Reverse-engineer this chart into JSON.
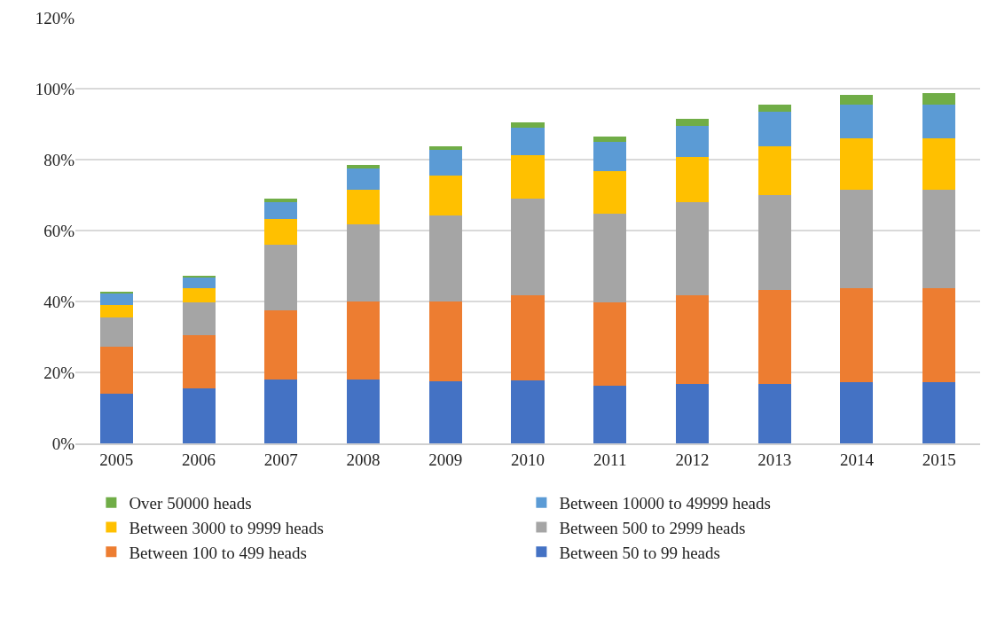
{
  "chart_data": {
    "type": "bar",
    "stacked": true,
    "categories": [
      "2005",
      "2006",
      "2007",
      "2008",
      "2009",
      "2010",
      "2011",
      "2012",
      "2013",
      "2014",
      "2015"
    ],
    "series": [
      {
        "name": "Between 50 to 99 heads",
        "color": "#4472c4",
        "values": [
          13.9,
          15.4,
          18.0,
          18.0,
          17.6,
          17.8,
          16.2,
          16.7,
          16.7,
          17.2,
          17.2
        ]
      },
      {
        "name": "Between 100 to 499 heads",
        "color": "#ed7d31",
        "values": [
          13.4,
          15.0,
          19.6,
          22.1,
          22.5,
          24.0,
          23.5,
          25.1,
          26.6,
          26.6,
          26.6
        ]
      },
      {
        "name": "Between 500 to 2999 heads",
        "color": "#a5a5a5",
        "values": [
          8.2,
          9.3,
          18.5,
          21.6,
          24.2,
          27.2,
          25.1,
          26.1,
          26.7,
          27.7,
          27.7
        ]
      },
      {
        "name": "Between 3000 to 9999 heads",
        "color": "#ffc000",
        "values": [
          3.6,
          4.0,
          7.1,
          9.8,
          11.2,
          12.3,
          11.9,
          12.9,
          13.8,
          14.4,
          14.4
        ]
      },
      {
        "name": "Between 10000 to 49999 heads",
        "color": "#5b9bd5",
        "values": [
          3.2,
          3.2,
          4.7,
          6.1,
          7.3,
          7.7,
          8.2,
          8.7,
          9.8,
          9.7,
          9.7
        ]
      },
      {
        "name": "Over 50000 heads",
        "color": "#70ad47",
        "values": [
          0.4,
          0.4,
          1.0,
          1.0,
          1.0,
          1.5,
          1.5,
          2.0,
          2.0,
          2.6,
          3.1
        ]
      }
    ],
    "ylim": [
      0,
      120
    ],
    "yticks": [
      {
        "value": 0,
        "label": "0%"
      },
      {
        "value": 20,
        "label": "20%"
      },
      {
        "value": 40,
        "label": "40%"
      },
      {
        "value": 60,
        "label": "60%"
      },
      {
        "value": 80,
        "label": "80%"
      },
      {
        "value": 100,
        "label": "100%"
      },
      {
        "value": 120,
        "label": "120%"
      }
    ],
    "grid": "y",
    "legend": "bottom"
  }
}
